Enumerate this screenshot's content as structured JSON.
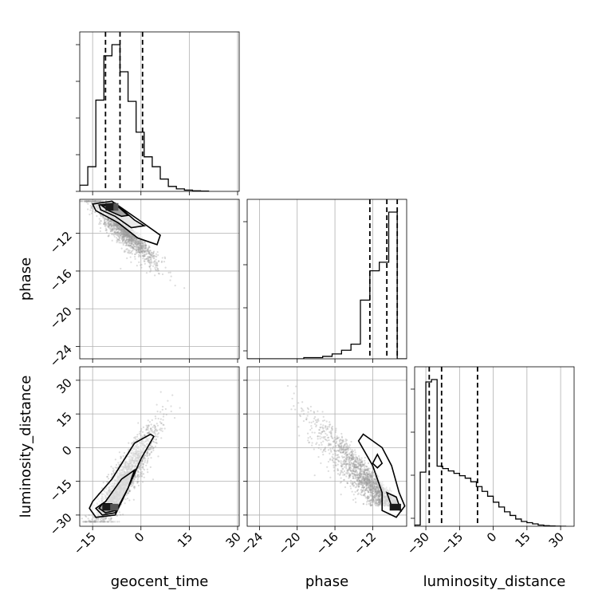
{
  "chart_data": {
    "type": "corner",
    "parameters": [
      "geocent_time",
      "phase",
      "luminosity_distance"
    ],
    "axis_labels": {
      "geocent_time": "geocent_time",
      "phase": "phase",
      "luminosity_distance": "luminosity_distance"
    },
    "ranges": {
      "geocent_time": [
        -19,
        30.5
      ],
      "phase": [
        -25.3,
        -8.4
      ],
      "luminosity_distance": [
        -35,
        36
      ]
    },
    "ticks": {
      "geocent_time": {
        "values": [
          -15,
          0,
          15,
          30
        ],
        "labels": [
          "−15",
          "0",
          "15",
          "30"
        ]
      },
      "phase": {
        "values": [
          -24,
          -20,
          -16,
          -12
        ],
        "labels": [
          "−24",
          "−20",
          "−16",
          "−12"
        ]
      },
      "luminosity_distance": {
        "values": [
          -30,
          -15,
          0,
          15,
          30
        ],
        "labels": [
          "−30",
          "−15",
          "0",
          "15",
          "30"
        ]
      }
    },
    "grid": true,
    "histograms": {
      "geocent_time": {
        "edges": [
          -19,
          -16.5,
          -14,
          -11.5,
          -9,
          -6.5,
          -4,
          -1.5,
          1,
          3.5,
          6,
          8.5,
          11,
          13.5,
          16,
          18.5,
          21
        ],
        "counts": [
          5,
          20,
          74,
          110,
          119,
          97,
          73,
          48,
          28,
          20,
          10,
          4,
          2,
          1,
          0.5,
          0.2
        ],
        "quantiles": [
          -11,
          -6.5,
          0.5
        ]
      },
      "phase": {
        "edges": [
          -25.3,
          -24.3,
          -23.3,
          -22.3,
          -21.3,
          -20.3,
          -19.3,
          -18.3,
          -17.3,
          -16.3,
          -15.3,
          -14.3,
          -13.3,
          -12.3,
          -11.3,
          -10.3,
          -9.4,
          -8.4
        ],
        "counts": [
          0,
          0,
          0,
          0,
          0,
          0,
          1,
          1,
          2,
          4,
          7,
          12,
          48,
          72,
          79,
          120,
          0
        ],
        "quantiles": [
          -12.3,
          -10.5,
          -9.4
        ]
      },
      "luminosity_distance": {
        "edges": [
          -35,
          -32.5,
          -30,
          -27.5,
          -25,
          -22.5,
          -20,
          -17.5,
          -15,
          -12.5,
          -10,
          -7.5,
          -5,
          -2.5,
          0,
          2.5,
          5,
          7.5,
          10,
          12.5,
          15,
          17.5,
          20,
          22.5,
          25,
          27.5,
          30,
          32.5
        ],
        "counts": [
          1,
          45,
          120,
          122,
          50,
          48,
          46,
          44,
          42,
          40,
          37,
          33,
          29,
          25,
          20,
          16,
          12,
          9,
          6,
          4,
          3,
          2,
          1,
          0.5,
          0.2,
          0.1,
          0
        ],
        "quantiles": [
          -28.5,
          -23,
          -7
        ]
      }
    },
    "scatter_description": "posterior samples shown as faint grey points with density contours",
    "pairs": [
      {
        "x": "geocent_time",
        "y": "phase",
        "peak": [
          -10,
          -9.2
        ]
      },
      {
        "x": "geocent_time",
        "y": "luminosity_distance",
        "peak": [
          -10.5,
          -26.5
        ]
      },
      {
        "x": "phase",
        "y": "luminosity_distance",
        "peak": [
          -9.6,
          -26.5
        ]
      }
    ],
    "colors": {
      "samples": "#9a9a9a",
      "contours": "#000000",
      "grid": "#b0b0b0",
      "dense": "#1a1a1a"
    }
  }
}
